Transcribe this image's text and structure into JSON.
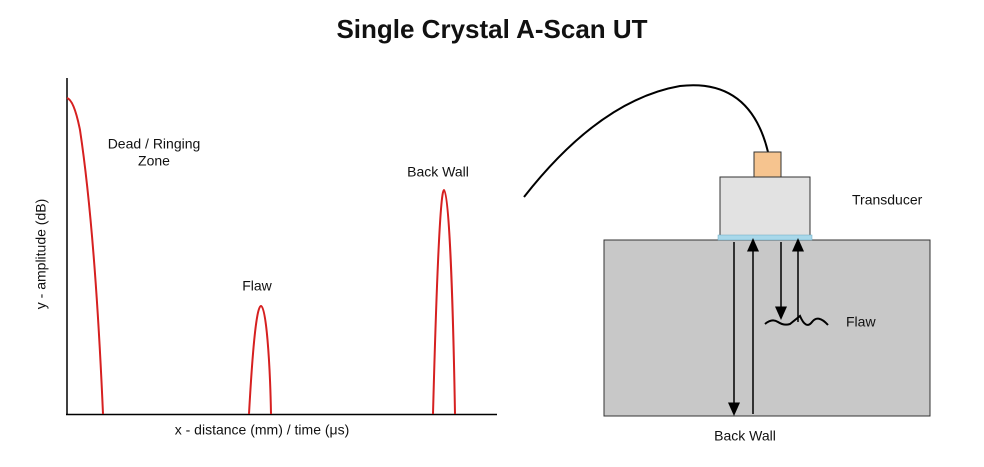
{
  "title": "Single Crystal A-Scan UT",
  "a_scan": {
    "y_axis_label": "y - amplitude (dB)",
    "x_axis_label": "x - distance (mm) / time (μs)",
    "peaks": [
      {
        "label": [
          "Dead / Ringing",
          "Zone"
        ]
      },
      {
        "label": [
          "Flaw"
        ]
      },
      {
        "label": [
          "Back Wall"
        ]
      }
    ]
  },
  "setup": {
    "transducer_label": "Transducer",
    "flaw_label": "Flaw",
    "back_wall_label": "Back Wall"
  }
}
